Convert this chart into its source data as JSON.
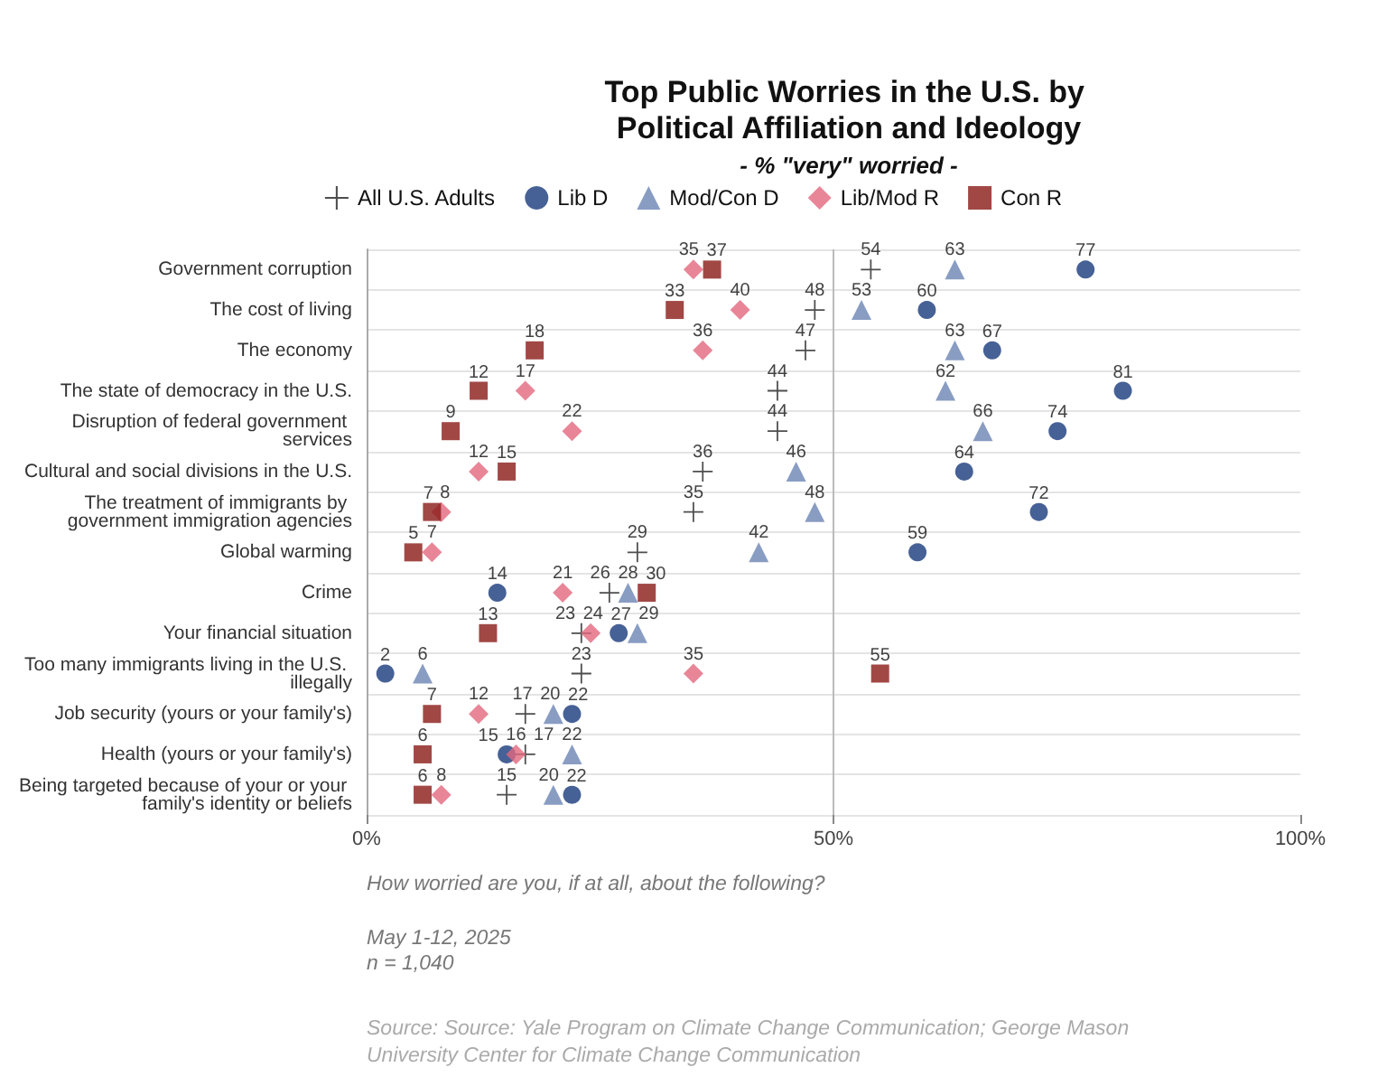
{
  "chart_data": {
    "type": "scatter",
    "orientation": "horizontal",
    "title": "Top Public Worries in the U.S. by Political Affiliation and Ideology",
    "subtitle": "- % \"very\" worried -",
    "categories": [
      "Government corruption",
      "The cost of living",
      "The economy",
      "The state of democracy in the U.S.",
      "Disruption of federal government services",
      "Cultural and social divisions in the U.S.",
      "The treatment of immigrants by government immigration agencies",
      "Global warming",
      "Crime",
      "Your financial situation",
      "Too many immigrants living in the U.S. illegally",
      "Job security (yours or your family's)",
      "Health (yours or your family's)",
      "Being targeted because of your or your family's identity or beliefs"
    ],
    "series": [
      {
        "name": "All U.S. Adults",
        "color": "#222222",
        "marker": "cross",
        "values": [
          54,
          48,
          47,
          44,
          44,
          36,
          35,
          29,
          26,
          23,
          23,
          17,
          17,
          15
        ]
      },
      {
        "name": "Lib D",
        "color": "#183a7c",
        "marker": "circle",
        "values": [
          77,
          60,
          67,
          81,
          74,
          64,
          72,
          59,
          14,
          27,
          2,
          22,
          15,
          22
        ]
      },
      {
        "name": "Mod/Con D",
        "color": "#6b84b4",
        "marker": "triangle",
        "values": [
          63,
          53,
          63,
          62,
          66,
          46,
          48,
          42,
          28,
          29,
          6,
          20,
          22,
          20
        ]
      },
      {
        "name": "Lib/Mod R",
        "color": "#e2687e",
        "marker": "diamond",
        "values": [
          35,
          40,
          36,
          17,
          22,
          12,
          8,
          7,
          21,
          24,
          35,
          12,
          16,
          8
        ]
      },
      {
        "name": "Con R",
        "color": "#8a1a16",
        "marker": "square",
        "values": [
          37,
          33,
          18,
          12,
          9,
          15,
          7,
          5,
          30,
          13,
          55,
          7,
          6,
          6
        ]
      }
    ],
    "xlim": [
      0,
      100
    ],
    "xticks": [
      {
        "value": 0,
        "label": "0%"
      },
      {
        "value": 50,
        "label": "50%"
      },
      {
        "value": 100,
        "label": "100%"
      }
    ],
    "ref_lines": [
      {
        "axis": "x",
        "value": 50,
        "label": null,
        "color": "#bbbbbb"
      }
    ],
    "grid": "y",
    "legend": "top",
    "data_labels": true,
    "annotations": [
      "How worried are you, if at all, about the following?",
      "May 1-12, 2025",
      "n = 1,040",
      "Source: Source: Yale Program on Climate Change Communication; George Mason University Center for Climate Change Communication"
    ]
  }
}
